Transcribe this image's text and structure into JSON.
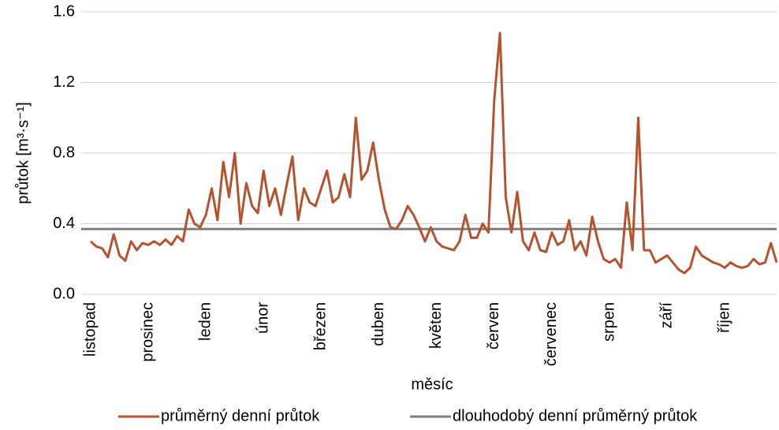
{
  "chart_data": {
    "type": "line",
    "xlabel": "měsíc",
    "ylabel": "průtok [m³·s⁻¹]",
    "categories": [
      "listopad",
      null,
      null,
      null,
      null,
      null,
      null,
      null,
      null,
      null,
      "prosinec",
      null,
      null,
      null,
      null,
      null,
      null,
      null,
      null,
      null,
      "leden",
      null,
      null,
      null,
      null,
      null,
      null,
      null,
      null,
      null,
      "únor",
      null,
      null,
      null,
      null,
      null,
      null,
      null,
      null,
      null,
      "březen",
      null,
      null,
      null,
      null,
      null,
      null,
      null,
      null,
      null,
      "duben",
      null,
      null,
      null,
      null,
      null,
      null,
      null,
      null,
      null,
      "květen",
      null,
      null,
      null,
      null,
      null,
      null,
      null,
      null,
      null,
      "červen",
      null,
      null,
      null,
      null,
      null,
      null,
      null,
      null,
      null,
      "červenec",
      null,
      null,
      null,
      null,
      null,
      null,
      null,
      null,
      null,
      "srpen",
      null,
      null,
      null,
      null,
      null,
      null,
      null,
      null,
      null,
      "září",
      null,
      null,
      null,
      null,
      null,
      null,
      null,
      null,
      null,
      "říjen",
      null,
      null,
      null,
      null,
      null,
      null,
      null,
      null,
      null
    ],
    "series": [
      {
        "name": "průměrný denní průtok",
        "color": "#b5532f",
        "values": [
          0.3,
          0.27,
          0.26,
          0.21,
          0.34,
          0.22,
          0.19,
          0.3,
          0.25,
          0.29,
          0.28,
          0.3,
          0.28,
          0.31,
          0.28,
          0.33,
          0.3,
          0.48,
          0.4,
          0.38,
          0.45,
          0.6,
          0.42,
          0.75,
          0.55,
          0.8,
          0.4,
          0.63,
          0.5,
          0.46,
          0.7,
          0.5,
          0.6,
          0.45,
          0.62,
          0.78,
          0.42,
          0.6,
          0.52,
          0.5,
          0.6,
          0.7,
          0.52,
          0.55,
          0.68,
          0.55,
          1.0,
          0.65,
          0.7,
          0.86,
          0.65,
          0.48,
          0.38,
          0.37,
          0.42,
          0.5,
          0.45,
          0.38,
          0.3,
          0.38,
          0.3,
          0.27,
          0.26,
          0.25,
          0.3,
          0.45,
          0.32,
          0.32,
          0.4,
          0.35,
          1.1,
          1.48,
          0.55,
          0.35,
          0.58,
          0.3,
          0.25,
          0.35,
          0.25,
          0.24,
          0.35,
          0.28,
          0.3,
          0.42,
          0.25,
          0.3,
          0.22,
          0.44,
          0.3,
          0.2,
          0.18,
          0.2,
          0.15,
          0.52,
          0.25,
          1.0,
          0.25,
          0.25,
          0.18,
          0.2,
          0.22,
          0.18,
          0.14,
          0.12,
          0.15,
          0.27,
          0.22,
          0.2,
          0.18,
          0.17,
          0.15,
          0.18,
          0.16,
          0.15,
          0.16,
          0.2,
          0.17,
          0.18,
          0.29,
          0.18
        ]
      }
    ],
    "reference_lines": [
      {
        "name": "dlouhodobý denní průměrný průtok",
        "color": "#7f7f7f",
        "value": 0.37
      }
    ],
    "ylim": [
      0,
      1.6
    ],
    "yticks": [
      {
        "value": 0,
        "label": "0.0"
      },
      0.4,
      0.8,
      1.2,
      1.6
    ],
    "grid": true,
    "legend": "bottom"
  }
}
